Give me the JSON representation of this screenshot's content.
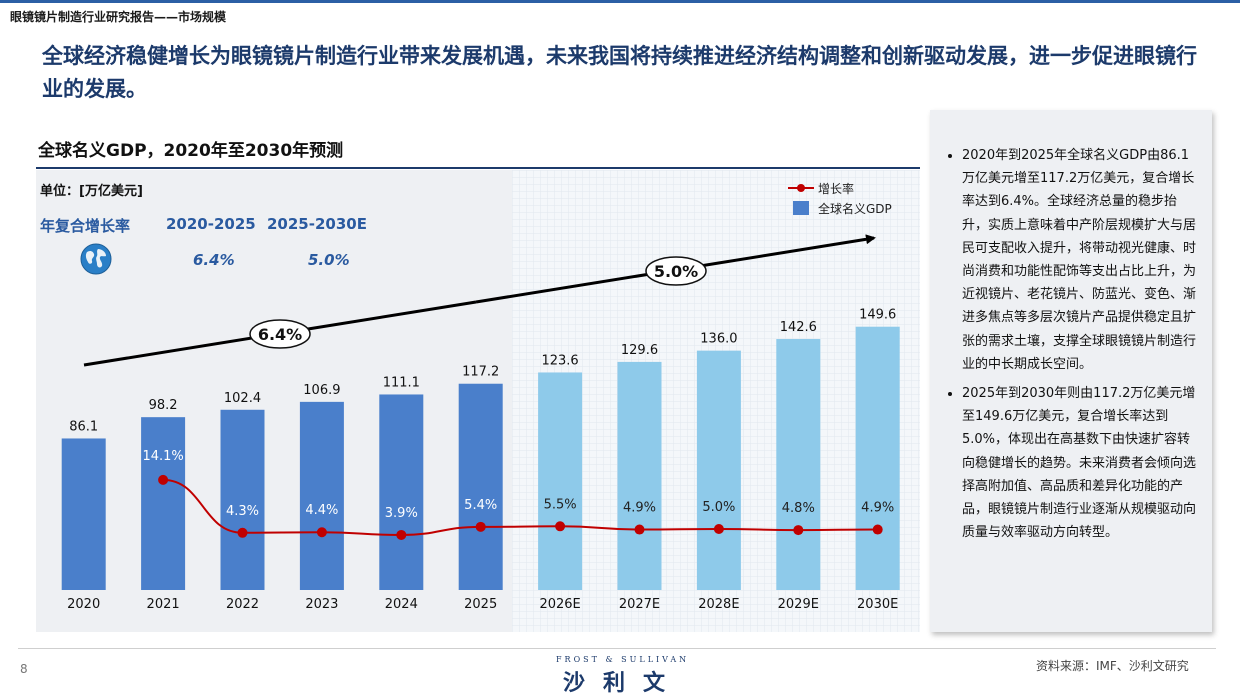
{
  "header": {
    "breadcrumb": "眼镜镜片制造行业研究报告——市场规模",
    "headline": "全球经济稳健增长为眼镜镜片制造行业带来发展机遇，未来我国将持续推进经济结构调整和创新驱动发展，进一步促进眼镜行业的发展。"
  },
  "chart": {
    "unit": "单位：[万亿美元]",
    "cagr_label": "年复合增长率",
    "cagr_periods": [
      "2020-2025",
      "2025-2030E"
    ],
    "cagr_values": [
      "6.4%",
      "5.0%"
    ],
    "arrow_labels": [
      "6.4%",
      "5.0%"
    ],
    "icon": "globe-icon"
  },
  "chart_data": {
    "type": "bar",
    "title": "全球名义GDP，2020年至2030年预测",
    "categories": [
      "2020",
      "2021",
      "2022",
      "2023",
      "2024",
      "2025",
      "2026E",
      "2027E",
      "2028E",
      "2029E",
      "2030E"
    ],
    "series": [
      {
        "name": "全球名义GDP",
        "type": "bar",
        "values": [
          86.1,
          98.2,
          102.4,
          106.9,
          111.1,
          117.2,
          123.6,
          129.6,
          136.0,
          142.6,
          149.6
        ],
        "labels": [
          "86.1",
          "98.2",
          "102.4",
          "106.9",
          "111.1",
          "117.2",
          "123.6",
          "129.6",
          "136.0",
          "142.6",
          "149.6"
        ]
      },
      {
        "name": "增长率",
        "type": "line",
        "values": [
          null,
          14.1,
          4.3,
          4.4,
          3.9,
          5.4,
          5.5,
          4.9,
          5.0,
          4.8,
          4.9
        ],
        "labels": [
          "",
          "14.1%",
          "4.3%",
          "4.4%",
          "3.9%",
          "5.4%",
          "5.5%",
          "4.9%",
          "5.0%",
          "4.8%",
          "4.9%"
        ]
      }
    ],
    "legend": [
      "增长率",
      "全球名义GDP"
    ],
    "legend_position": "top-right",
    "colors": {
      "actual": "#4a7fcb",
      "forecast": "#8ecaea",
      "line": "#c00000",
      "arrow": "#000000"
    },
    "forecast_start_index": 6,
    "ylim": [
      0,
      160
    ]
  },
  "panel": {
    "bullets": [
      "2020年到2025年全球名义GDP由86.1万亿美元增至117.2万亿美元，复合增长率达到6.4%。全球经济总量的稳步抬升，实质上意味着中产阶层规模扩大与居民可支配收入提升，将带动视光健康、时尚消费和功能性配饰等支出占比上升，为近视镜片、老花镜片、防蓝光、变色、渐进多焦点等多层次镜片产品提供稳定且扩张的需求土壤，支撑全球眼镜镜片制造行业的中长期成长空间。",
      "2025年到2030年则由117.2万亿美元增至149.6万亿美元，复合增长率达到5.0%，体现出在高基数下由快速扩容转向稳健增长的趋势。未来消费者会倾向选择高附加值、高品质和差异化功能的产品，眼镜镜片制造行业逐渐从规模驱动向质量与效率驱动方向转型。"
    ]
  },
  "footer": {
    "page_number": "8",
    "logo_en": "FROST & SULLIVAN",
    "logo_cn": "沙利文",
    "source": "资料来源：IMF、沙利文研究"
  }
}
